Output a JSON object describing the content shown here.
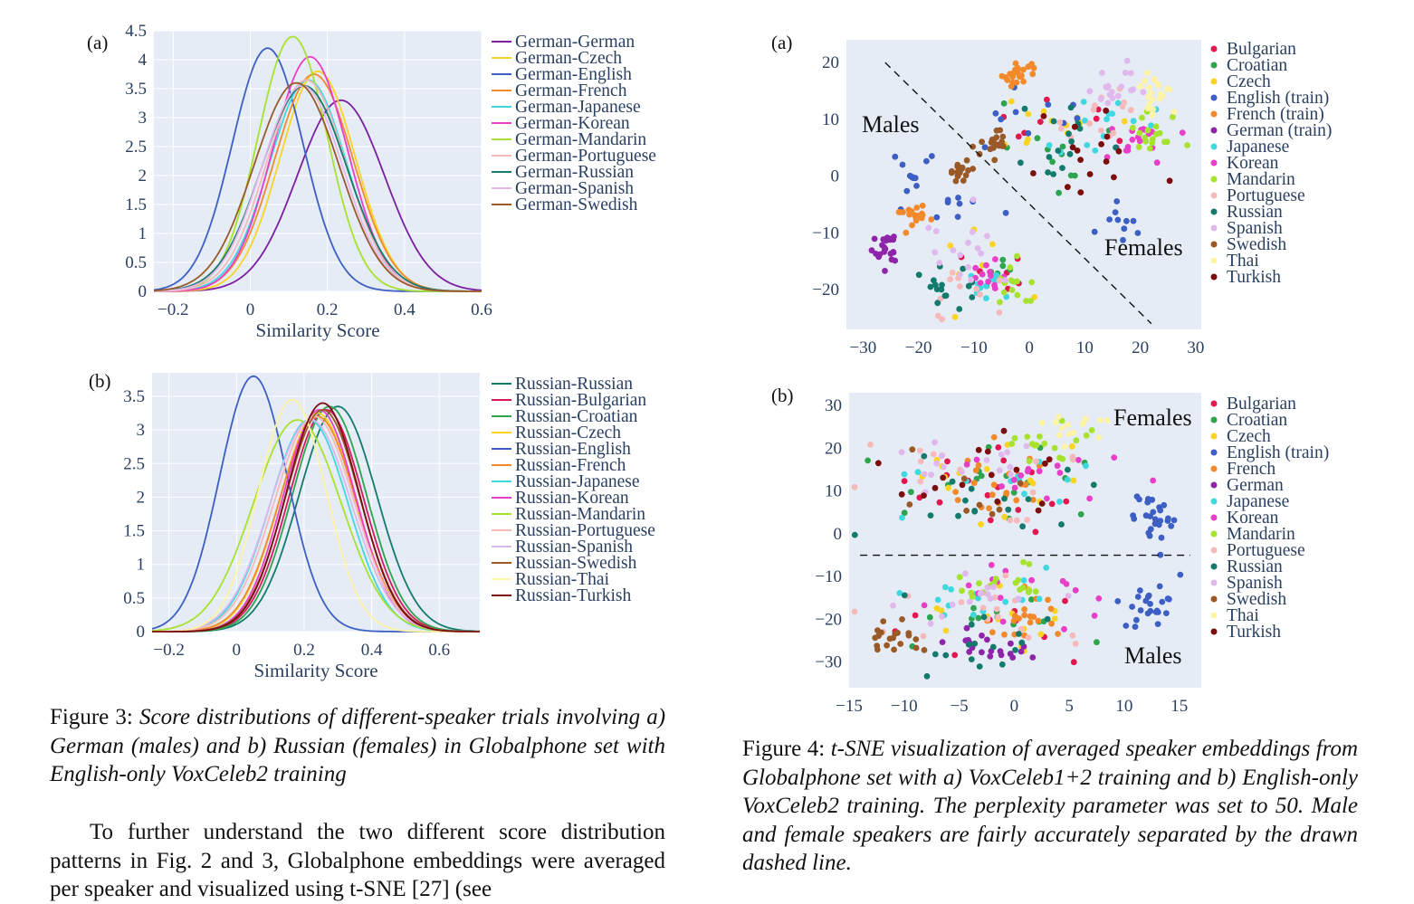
{
  "fig3": {
    "caption_label": "Figure 3:",
    "caption_text": "Score distributions of different-speaker trials involving a) German (males) and b) Russian (females) in Globalphone set with English-only VoxCeleb2 training"
  },
  "fig4": {
    "caption_label": "Figure 4:",
    "caption_text": "t-SNE visualization of averaged speaker embeddings from Globalphone set with a) VoxCeleb1+2 training and b) English-only VoxCeleb2 training. The perplexity parameter was set to 50. Male and female speakers are fairly accurately separated by the drawn dashed line."
  },
  "body_paragraph": "To further understand the two different score distribution patterns in Fig. 2 and 3, Globalphone embeddings were averaged per speaker and visualized using t-SNE [27] (see",
  "chart_data": [
    {
      "id": "fig3a",
      "panel_label": "(a)",
      "type": "line",
      "xlabel": "Similarity Score",
      "ylabel": "",
      "xlim": [
        -0.25,
        0.6
      ],
      "ylim": [
        0,
        4.5
      ],
      "xticks": [
        "−0.2",
        "0",
        "0.2",
        "0.4",
        "0.6"
      ],
      "yticks": [
        "0",
        "0.5",
        "1",
        "1.5",
        "2",
        "2.5",
        "3",
        "3.5",
        "4",
        "4.5"
      ],
      "grid": true,
      "legend": "right",
      "series": [
        {
          "name": "German-German",
          "color": "#7b1fa2",
          "mean": 0.235,
          "sd": 0.113,
          "peak": 3.3
        },
        {
          "name": "German-Czech",
          "color": "#f9d423",
          "mean": 0.175,
          "sd": 0.098,
          "peak": 3.8
        },
        {
          "name": "German-English",
          "color": "#3d5fc4",
          "mean": 0.045,
          "sd": 0.092,
          "peak": 4.2
        },
        {
          "name": "German-French",
          "color": "#f28a2c",
          "mean": 0.165,
          "sd": 0.102,
          "peak": 3.75
        },
        {
          "name": "German-Japanese",
          "color": "#3fd7e0",
          "mean": 0.15,
          "sd": 0.1,
          "peak": 3.65
        },
        {
          "name": "German-Korean",
          "color": "#e83fc8",
          "mean": 0.155,
          "sd": 0.097,
          "peak": 4.05
        },
        {
          "name": "German-Mandarin",
          "color": "#a6e22e",
          "mean": 0.11,
          "sd": 0.09,
          "peak": 4.4
        },
        {
          "name": "German-Portuguese",
          "color": "#f7b9b9",
          "mean": 0.145,
          "sd": 0.103,
          "peak": 3.65
        },
        {
          "name": "German-Russian",
          "color": "#137a6c",
          "mean": 0.14,
          "sd": 0.11,
          "peak": 3.55
        },
        {
          "name": "German-Spanish",
          "color": "#e8b8ec",
          "mean": 0.135,
          "sd": 0.105,
          "peak": 3.55
        },
        {
          "name": "German-Swedish",
          "color": "#9a5a28",
          "mean": 0.12,
          "sd": 0.11,
          "peak": 3.6
        }
      ]
    },
    {
      "id": "fig3b",
      "panel_label": "(b)",
      "type": "line",
      "xlabel": "Similarity Score",
      "ylabel": "",
      "xlim": [
        -0.25,
        0.72
      ],
      "ylim": [
        0,
        3.85
      ],
      "xticks": [
        "−0.2",
        "0",
        "0.2",
        "0.4",
        "0.6"
      ],
      "yticks": [
        "0",
        "0.5",
        "1",
        "1.5",
        "2",
        "2.5",
        "3",
        "3.5"
      ],
      "grid": true,
      "legend": "right",
      "series": [
        {
          "name": "Russian-Russian",
          "color": "#137a6c",
          "mean": 0.3,
          "sd": 0.115,
          "peak": 3.35
        },
        {
          "name": "Russian-Bulgarian",
          "color": "#d6195e",
          "mean": 0.265,
          "sd": 0.11,
          "peak": 3.3
        },
        {
          "name": "Russian-Croatian",
          "color": "#2ea44f",
          "mean": 0.275,
          "sd": 0.11,
          "peak": 3.35
        },
        {
          "name": "Russian-Czech",
          "color": "#f9d423",
          "mean": 0.24,
          "sd": 0.112,
          "peak": 3.25
        },
        {
          "name": "Russian-English",
          "color": "#3d5fc4",
          "mean": 0.05,
          "sd": 0.1,
          "peak": 3.8
        },
        {
          "name": "Russian-French",
          "color": "#f28a2c",
          "mean": 0.24,
          "sd": 0.114,
          "peak": 3.2
        },
        {
          "name": "Russian-Japanese",
          "color": "#3fd7e0",
          "mean": 0.215,
          "sd": 0.115,
          "peak": 3.15
        },
        {
          "name": "Russian-Korean",
          "color": "#e83fc8",
          "mean": 0.245,
          "sd": 0.108,
          "peak": 3.3
        },
        {
          "name": "Russian-Mandarin",
          "color": "#a6e22e",
          "mean": 0.18,
          "sd": 0.13,
          "peak": 3.15
        },
        {
          "name": "Russian-Portuguese",
          "color": "#f7b9b9",
          "mean": 0.23,
          "sd": 0.118,
          "peak": 3.2
        },
        {
          "name": "Russian-Spanish",
          "color": "#d9b8ec",
          "mean": 0.22,
          "sd": 0.12,
          "peak": 3.15
        },
        {
          "name": "Russian-Swedish",
          "color": "#9a5a28",
          "mean": 0.255,
          "sd": 0.11,
          "peak": 3.3
        },
        {
          "name": "Russian-Thai",
          "color": "#fff3a6",
          "mean": 0.165,
          "sd": 0.1,
          "peak": 3.45
        },
        {
          "name": "Russian-Turkish",
          "color": "#7b0d0d",
          "mean": 0.255,
          "sd": 0.108,
          "peak": 3.4
        }
      ]
    },
    {
      "id": "fig4a",
      "panel_label": "(a)",
      "type": "scatter",
      "xlim": [
        -33,
        31
      ],
      "ylim": [
        -27,
        24
      ],
      "xticks": [
        -30,
        -20,
        -10,
        0,
        10,
        20,
        30
      ],
      "yticks": [
        -20,
        -10,
        0,
        10,
        20
      ],
      "grid": false,
      "legend": "right",
      "annotations": [
        "Males",
        "Females"
      ],
      "dashed_line": [
        [
          -26,
          20
        ],
        [
          22,
          -26
        ]
      ],
      "series": [
        {
          "name": "Bulgarian",
          "color": "#e3174f",
          "clusters": [
            [
              5,
              7,
              7,
              5,
              8
            ],
            [
              -7,
              -16,
              5,
              4,
              6
            ]
          ]
        },
        {
          "name": "Croatian",
          "color": "#2ea44f",
          "clusters": [
            [
              5,
              5,
              8,
              6,
              12
            ],
            [
              -8,
              -17,
              5,
              5,
              6
            ]
          ]
        },
        {
          "name": "Czech",
          "color": "#f9d423",
          "clusters": [
            [
              4,
              9,
              7,
              5,
              12
            ],
            [
              -10,
              -16,
              5,
              5,
              7
            ]
          ]
        },
        {
          "name": "English (train)",
          "color": "#3d5fc4",
          "clusters": [
            [
              -22,
              0,
              3,
              3,
              12
            ],
            [
              17,
              -7,
              3,
              3,
              10
            ],
            [
              5,
              10,
              10,
              5,
              10
            ],
            [
              -12,
              -8,
              6,
              4,
              8
            ]
          ]
        },
        {
          "name": "French (train)",
          "color": "#f28a2c",
          "clusters": [
            [
              -2,
              18,
              2,
              1.5,
              22
            ],
            [
              -21,
              -7,
              2.5,
              1.5,
              20
            ]
          ]
        },
        {
          "name": "German (train)",
          "color": "#8e24aa",
          "clusters": [
            [
              -26,
              -13,
              2,
              2,
              22
            ]
          ]
        },
        {
          "name": "Japanese",
          "color": "#3fd7e0",
          "clusters": [
            [
              12,
              9,
              6,
              4,
              14
            ],
            [
              -8,
              -19,
              4,
              3,
              10
            ]
          ]
        },
        {
          "name": "Korean",
          "color": "#e83fc8",
          "clusters": [
            [
              19,
              7,
              4,
              3,
              18
            ],
            [
              -8,
              -18,
              3,
              3,
              12
            ]
          ]
        },
        {
          "name": "Mandarin",
          "color": "#a6e22e",
          "clusters": [
            [
              22,
              7,
              3,
              3,
              18
            ],
            [
              -3,
              -19,
              2,
              3,
              14
            ]
          ]
        },
        {
          "name": "Portuguese",
          "color": "#f7b9b9",
          "clusters": [
            [
              11,
              10,
              6,
              5,
              14
            ],
            [
              -12,
              -22,
              5,
              3,
              12
            ]
          ]
        },
        {
          "name": "Russian",
          "color": "#137a6c",
          "clusters": [
            [
              7,
              6,
              7,
              5,
              16
            ],
            [
              -15,
              -19,
              4,
              3,
              16
            ]
          ]
        },
        {
          "name": "Spanish",
          "color": "#e0b8ec",
          "clusters": [
            [
              17,
              16,
              4,
              3,
              18
            ],
            [
              -12,
              -13,
              5,
              5,
              16
            ]
          ]
        },
        {
          "name": "Swedish",
          "color": "#9a5a28",
          "clusters": [
            [
              -6,
              6,
              2,
              2,
              18
            ],
            [
              -12,
              1,
              2,
              1.5,
              18
            ]
          ]
        },
        {
          "name": "Thai",
          "color": "#fff3a6",
          "clusters": [
            [
              23,
              15,
              2.5,
              3,
              20
            ]
          ]
        },
        {
          "name": "Turkish",
          "color": "#7b0d0d",
          "clusters": [
            [
              10,
              4,
              7,
              5,
              16
            ]
          ]
        }
      ]
    },
    {
      "id": "fig4b",
      "panel_label": "(b)",
      "type": "scatter",
      "xlim": [
        -15,
        17
      ],
      "ylim": [
        -36,
        33
      ],
      "xticks": [
        -15,
        -10,
        -5,
        0,
        5,
        10,
        15
      ],
      "yticks": [
        -30,
        -20,
        -10,
        0,
        10,
        20,
        30
      ],
      "grid": false,
      "legend": "right",
      "annotations": [
        "Females",
        "Males"
      ],
      "dashed_line": [
        [
          -14,
          -5
        ],
        [
          16,
          -5
        ]
      ],
      "series": [
        {
          "name": "Bulgarian",
          "color": "#e3174f",
          "clusters": [
            [
              -2,
              10,
              7,
              7,
              16
            ],
            [
              -2,
              -20,
              7,
              6,
              10
            ]
          ]
        },
        {
          "name": "Croatian",
          "color": "#2ea44f",
          "clusters": [
            [
              -2,
              12,
              7,
              7,
              16
            ],
            [
              -4,
              -20,
              7,
              6,
              12
            ]
          ]
        },
        {
          "name": "Czech",
          "color": "#f9d423",
          "clusters": [
            [
              -2,
              12,
              7,
              7,
              16
            ],
            [
              0,
              -20,
              7,
              6,
              14
            ]
          ]
        },
        {
          "name": "English (train)",
          "color": "#3d5fc4",
          "clusters": [
            [
              13,
              4,
              1.5,
              5,
              26
            ],
            [
              12,
              -17,
              2,
              4,
              24
            ]
          ]
        },
        {
          "name": "French",
          "color": "#f28a2c",
          "clusters": [
            [
              -1,
              11,
              4,
              5,
              22
            ],
            [
              1,
              -20,
              3,
              4,
              20
            ]
          ]
        },
        {
          "name": "German",
          "color": "#8e24aa",
          "clusters": [
            [
              -1,
              -27,
              4,
              3,
              20
            ]
          ]
        },
        {
          "name": "Japanese",
          "color": "#3fd7e0",
          "clusters": [
            [
              -2,
              12,
              7,
              7,
              12
            ],
            [
              -4,
              -15,
              6,
              6,
              16
            ]
          ]
        },
        {
          "name": "Korean",
          "color": "#e83fc8",
          "clusters": [
            [
              2,
              14,
              6,
              6,
              16
            ],
            [
              2,
              -15,
              5,
              5,
              16
            ]
          ]
        },
        {
          "name": "Mandarin",
          "color": "#a6e22e",
          "clusters": [
            [
              3,
              22,
              3,
              3,
              16
            ],
            [
              0,
              -12,
              4,
              3,
              18
            ]
          ]
        },
        {
          "name": "Portuguese",
          "color": "#f7b9b9",
          "clusters": [
            [
              -3,
              13,
              7,
              7,
              16
            ],
            [
              -3,
              -20,
              7,
              6,
              16
            ]
          ]
        },
        {
          "name": "Russian",
          "color": "#137a6c",
          "clusters": [
            [
              -3,
              10,
              7,
              7,
              16
            ],
            [
              -4,
              -24,
              5,
              5,
              16
            ]
          ]
        },
        {
          "name": "Spanish",
          "color": "#e0b8ec",
          "clusters": [
            [
              -5,
              16,
              6,
              5,
              16
            ],
            [
              -4,
              -15,
              5,
              6,
              14
            ]
          ]
        },
        {
          "name": "Swedish",
          "color": "#9a5a28",
          "clusters": [
            [
              -6,
              10,
              7,
              7,
              8
            ],
            [
              -11,
              -24,
              3,
              3,
              20
            ]
          ]
        },
        {
          "name": "Thai",
          "color": "#fff3a6",
          "clusters": [
            [
              6,
              25,
              2.5,
              2,
              14
            ]
          ]
        },
        {
          "name": "Turkish",
          "color": "#7b0d0d",
          "clusters": [
            [
              -2,
              14,
              7,
              7,
              16
            ]
          ]
        }
      ]
    }
  ]
}
